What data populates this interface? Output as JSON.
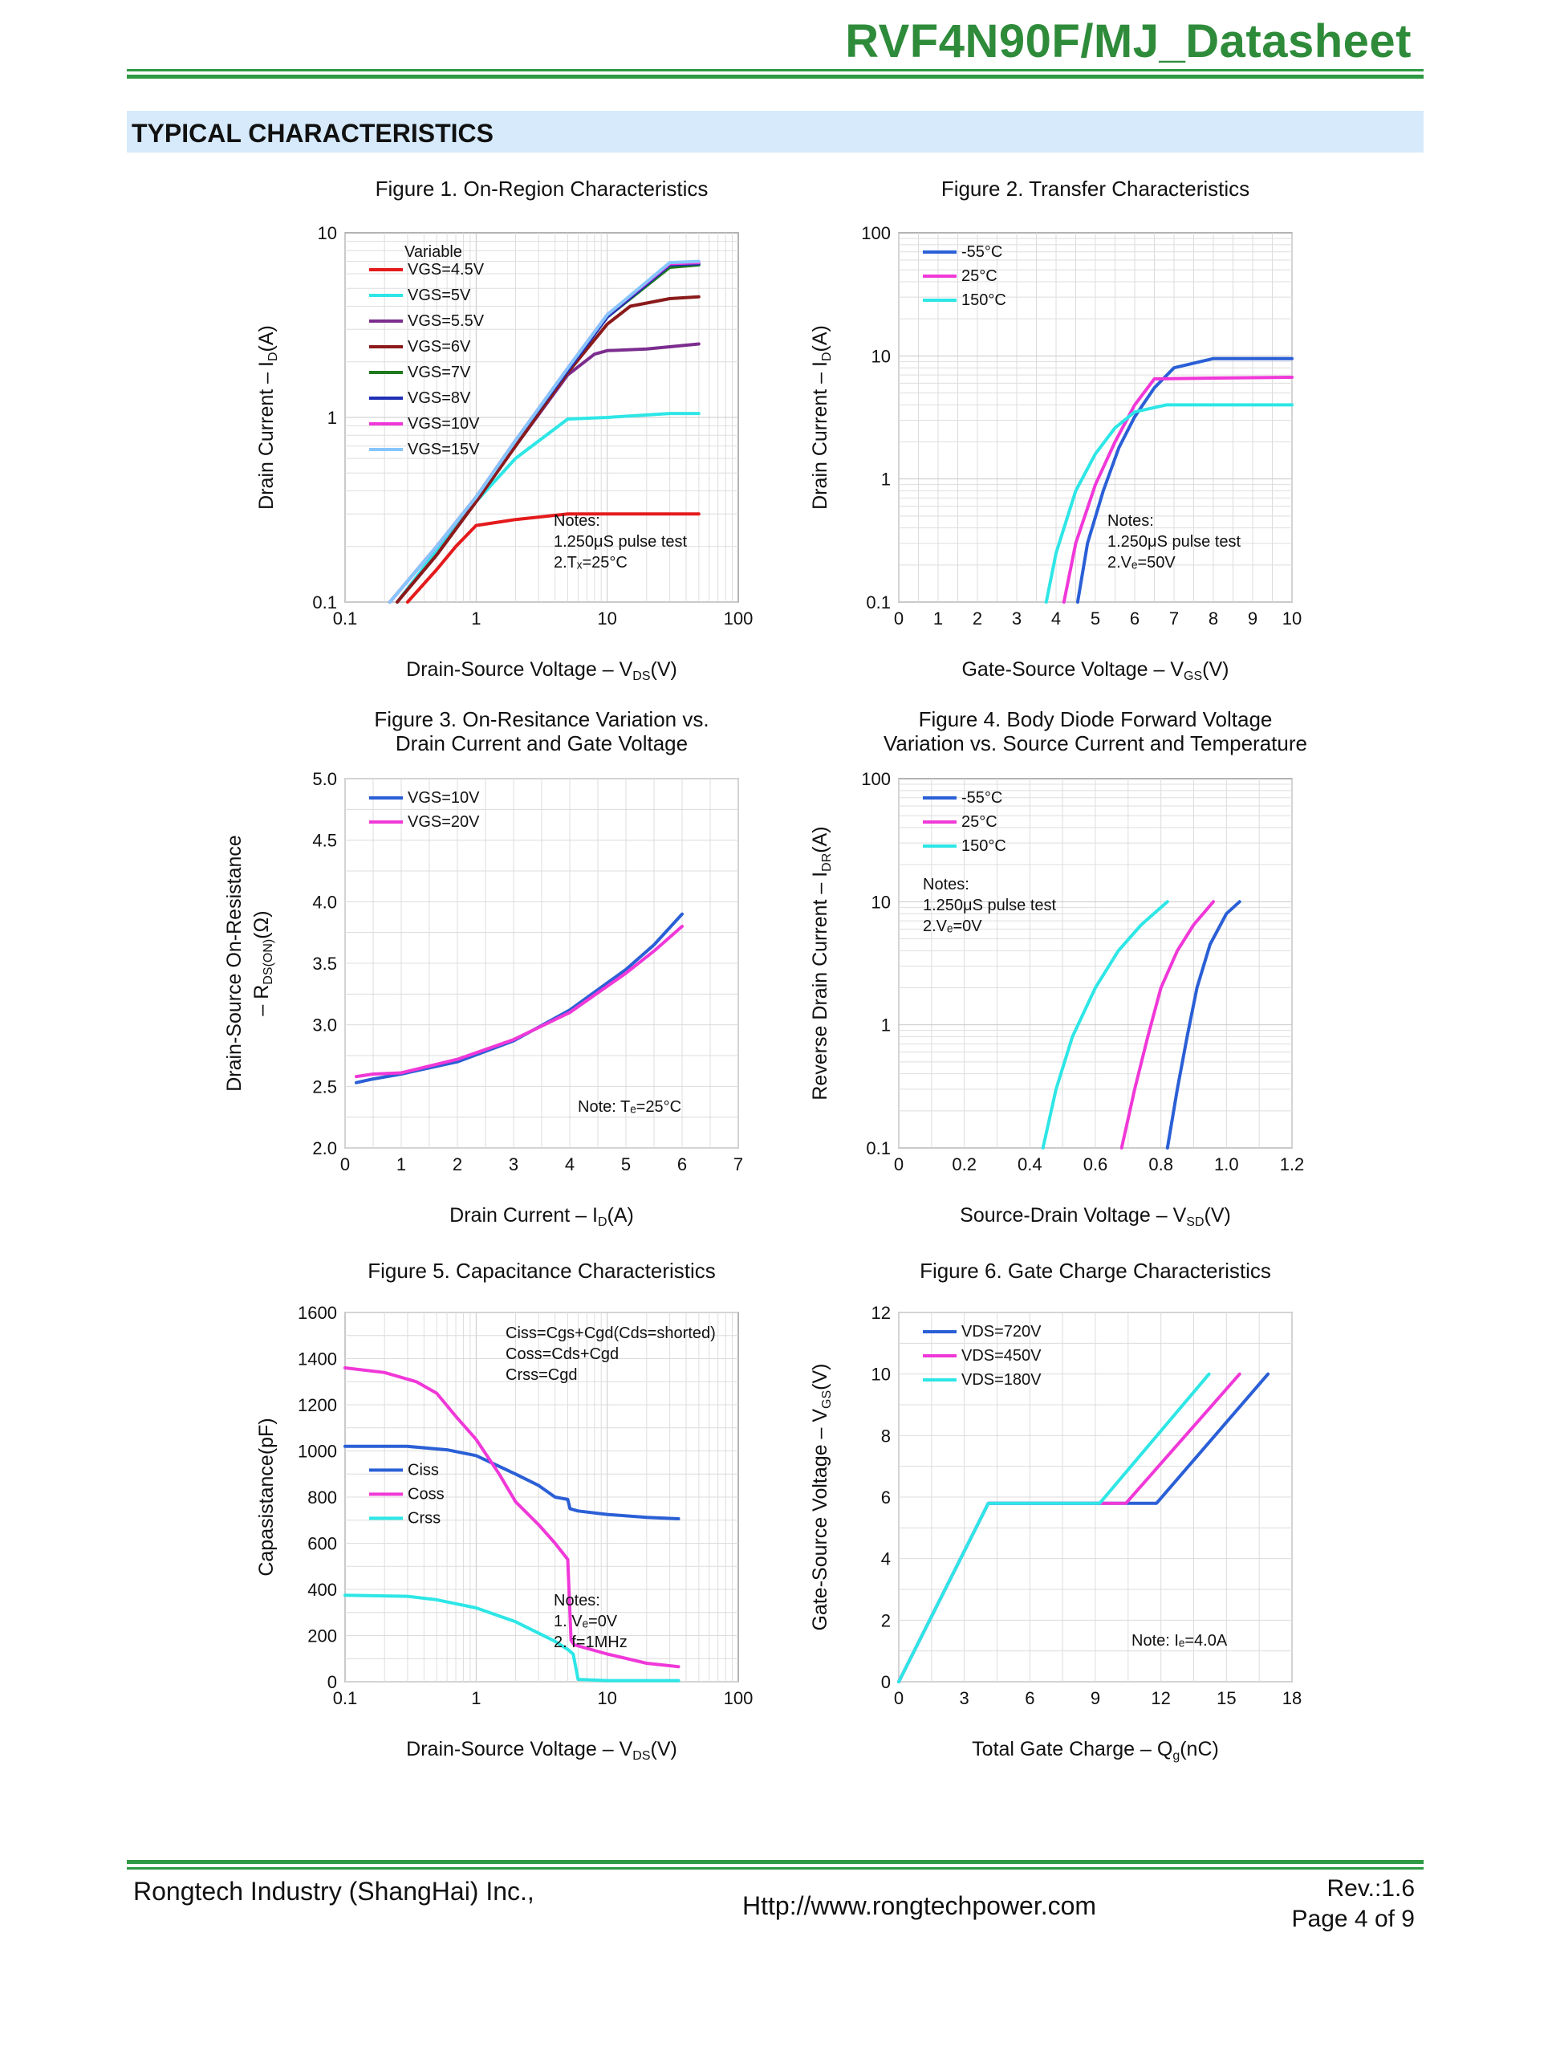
{
  "header": {
    "title": "RVF4N90F/MJ_Datasheet"
  },
  "section": {
    "title": "TYPICAL CHARACTERISTICS"
  },
  "footer": {
    "company": "Rongtech Industry (ShangHai) Inc.,",
    "url": "Http://www.rongtechpower.com",
    "rev": "Rev.:1.6",
    "page": "Page  4  of  9"
  },
  "colors": {
    "accent": "#2e8b3a",
    "section_bg": "#d6eafc"
  },
  "chart_data": [
    {
      "id": "fig1",
      "type": "line",
      "title": [
        "Figure 1. On-Region Characteristics"
      ],
      "xlabel": "Drain-Source Voltage  –  V",
      "xlabel_sub": "DS",
      "xlabel_end": "(V)",
      "ylabel": "Drain Current  –  I",
      "ylabel_sub": "D",
      "ylabel_end": "(A)",
      "xscale": "log",
      "yscale": "log",
      "xlim": [
        0.1,
        100
      ],
      "ylim": [
        0.1,
        10
      ],
      "xticks": [
        0.1,
        1,
        10,
        100
      ],
      "xticklabels": [
        "0.1",
        "1",
        "10",
        "100"
      ],
      "yticks": [
        0.1,
        1,
        10
      ],
      "yticklabels": [
        "0.1",
        "1",
        "10"
      ],
      "legend_title": "Variable",
      "legend_position": "top-left",
      "notes": [
        "Notes:",
        "1.250μS pulse test",
        "2.Tₓ=25°C"
      ],
      "notes_position": "bottom-right",
      "series": [
        {
          "name": "VGS=4.5V",
          "color": "#e41a1c",
          "x": [
            0.3,
            0.5,
            0.7,
            1.0,
            2,
            5,
            10,
            30,
            50
          ],
          "y": [
            0.1,
            0.15,
            0.2,
            0.26,
            0.28,
            0.3,
            0.3,
            0.3,
            0.3
          ]
        },
        {
          "name": "VGS=5V",
          "color": "#2ee6e6",
          "x": [
            0.25,
            0.5,
            1,
            2,
            5,
            10,
            30,
            50
          ],
          "y": [
            0.1,
            0.19,
            0.35,
            0.6,
            0.98,
            1.0,
            1.05,
            1.05
          ]
        },
        {
          "name": "VGS=5.5V",
          "color": "#7b2d8e",
          "x": [
            0.25,
            0.5,
            1,
            2,
            5,
            8,
            10,
            20,
            50
          ],
          "y": [
            0.1,
            0.18,
            0.35,
            0.7,
            1.7,
            2.2,
            2.3,
            2.35,
            2.5
          ]
        },
        {
          "name": "VGS=6V",
          "color": "#8b1a1a",
          "x": [
            0.25,
            0.5,
            1,
            2,
            5,
            10,
            15,
            30,
            50
          ],
          "y": [
            0.1,
            0.18,
            0.35,
            0.7,
            1.75,
            3.2,
            4.0,
            4.4,
            4.5
          ]
        },
        {
          "name": "VGS=7V",
          "color": "#1e7a1e",
          "x": [
            0.22,
            0.5,
            1,
            2,
            5,
            10,
            30,
            50
          ],
          "y": [
            0.1,
            0.2,
            0.37,
            0.75,
            1.8,
            3.5,
            6.5,
            6.7
          ]
        },
        {
          "name": "VGS=8V",
          "color": "#1f2fb5",
          "x": [
            0.22,
            0.5,
            1,
            2,
            5,
            10,
            30,
            50
          ],
          "y": [
            0.1,
            0.2,
            0.37,
            0.75,
            1.8,
            3.5,
            6.7,
            6.8
          ]
        },
        {
          "name": "VGS=10V",
          "color": "#f038d8",
          "x": [
            0.22,
            0.5,
            1,
            2,
            5,
            10,
            30,
            50
          ],
          "y": [
            0.1,
            0.2,
            0.37,
            0.75,
            1.85,
            3.6,
            6.8,
            6.9
          ]
        },
        {
          "name": "VGS=15V",
          "color": "#86c6ff",
          "x": [
            0.22,
            0.5,
            1,
            2,
            5,
            10,
            30,
            50
          ],
          "y": [
            0.1,
            0.2,
            0.37,
            0.75,
            1.85,
            3.6,
            6.9,
            7.0
          ]
        }
      ]
    },
    {
      "id": "fig2",
      "type": "line",
      "title": [
        "Figure 2. Transfer Characteristics"
      ],
      "xlabel": "Gate-Source Voltage  –  V",
      "xlabel_sub": "GS",
      "xlabel_end": "(V)",
      "ylabel": "Drain Current  –  I",
      "ylabel_sub": "D",
      "ylabel_end": "(A)",
      "xscale": "linear",
      "yscale": "log",
      "xlim": [
        0,
        10
      ],
      "ylim": [
        0.1,
        100
      ],
      "xticks": [
        0,
        1,
        2,
        3,
        4,
        5,
        6,
        7,
        8,
        9,
        10
      ],
      "xticklabels": [
        "0",
        "1",
        "2",
        "3",
        "4",
        "5",
        "6",
        "7",
        "8",
        "9",
        "10"
      ],
      "yticks": [
        0.1,
        1,
        10,
        100
      ],
      "yticklabels": [
        "0.1",
        "1",
        "10",
        "100"
      ],
      "legend_position": "top-left",
      "notes": [
        "Notes:",
        "1.250μS pulse test",
        "2.Vₑ=50V"
      ],
      "notes_position": "bottom-right",
      "series": [
        {
          "name": "-55°C",
          "color": "#2a5fd6",
          "x": [
            4.55,
            4.8,
            5.2,
            5.6,
            6.0,
            6.5,
            7.0,
            8.0,
            10.0
          ],
          "y": [
            0.1,
            0.3,
            0.8,
            1.8,
            3.2,
            5.5,
            8.0,
            9.5,
            9.5
          ]
        },
        {
          "name": "25°C",
          "color": "#f038d8",
          "x": [
            4.2,
            4.5,
            5.0,
            5.5,
            6.0,
            6.5,
            8.0,
            10.0
          ],
          "y": [
            0.1,
            0.3,
            0.9,
            2.0,
            4.0,
            6.5,
            6.6,
            6.7
          ]
        },
        {
          "name": "150°C",
          "color": "#2ee6e6",
          "x": [
            3.75,
            4.0,
            4.5,
            5.0,
            5.5,
            6.0,
            6.8,
            10.0
          ],
          "y": [
            0.1,
            0.25,
            0.8,
            1.6,
            2.6,
            3.5,
            4.0,
            4.0
          ]
        }
      ]
    },
    {
      "id": "fig3",
      "type": "line",
      "title": [
        "Figure 3. On-Resitance Variation vs.",
        "Drain Current and Gate Voltage"
      ],
      "xlabel": "Drain Current  –  I",
      "xlabel_sub": "D",
      "xlabel_end": "(A)",
      "ylabel": "Drain-Source On-Resistance",
      "ylabel2": "–  R",
      "ylabel2_sub": "DS(ON)",
      "ylabel2_end": "(Ω)",
      "xscale": "linear",
      "yscale": "linear",
      "xlim": [
        0,
        7
      ],
      "ylim": [
        2.0,
        5.0
      ],
      "xticks": [
        0,
        1,
        2,
        3,
        4,
        5,
        6,
        7
      ],
      "xticklabels": [
        "0",
        "1",
        "2",
        "3",
        "4",
        "5",
        "6",
        "7"
      ],
      "yticks": [
        2.0,
        2.5,
        3.0,
        3.5,
        4.0,
        4.5,
        5.0
      ],
      "yticklabels": [
        "2.0",
        "2.5",
        "3.0",
        "3.5",
        "4.0",
        "4.5",
        "5.0"
      ],
      "legend_position": "top-left",
      "notes": [
        "Note: Tₑ=25°C"
      ],
      "notes_position": "bottom-right",
      "series": [
        {
          "name": "VGS=10V",
          "color": "#2a5fd6",
          "x": [
            0.2,
            0.5,
            1,
            2,
            3,
            4,
            5,
            5.5,
            6.0
          ],
          "y": [
            2.53,
            2.56,
            2.6,
            2.7,
            2.87,
            3.12,
            3.45,
            3.65,
            3.9
          ]
        },
        {
          "name": "VGS=20V",
          "color": "#f038d8",
          "x": [
            0.2,
            0.5,
            1,
            2,
            3,
            4,
            5,
            5.5,
            6.0
          ],
          "y": [
            2.58,
            2.6,
            2.61,
            2.72,
            2.88,
            3.1,
            3.42,
            3.6,
            3.8
          ]
        }
      ]
    },
    {
      "id": "fig4",
      "type": "line",
      "title": [
        "Figure 4. Body Diode Forward Voltage",
        "Variation vs. Source Current and Temperature"
      ],
      "xlabel": "Source-Drain Voltage  –  V",
      "xlabel_sub": "SD",
      "xlabel_end": "(V)",
      "ylabel": "Reverse Drain Current  –  I",
      "ylabel_sub": "DR",
      "ylabel_end": "(A)",
      "xscale": "linear",
      "yscale": "log",
      "xlim": [
        0,
        1.2
      ],
      "ylim": [
        0.1,
        100
      ],
      "xticks": [
        0,
        0.2,
        0.4,
        0.6,
        0.8,
        1.0,
        1.2
      ],
      "xticklabels": [
        "0",
        "0.2",
        "0.4",
        "0.6",
        "0.8",
        "1.0",
        "1.2"
      ],
      "yticks": [
        0.1,
        1,
        10,
        100
      ],
      "yticklabels": [
        "0.1",
        "1",
        "10",
        "100"
      ],
      "legend_position": "top-left",
      "notes": [
        "Notes:",
        "1.250μS pulse test",
        "2.Vₑ=0V"
      ],
      "notes_position": "middle-left",
      "series": [
        {
          "name": "-55°C",
          "color": "#2a5fd6",
          "x": [
            0.82,
            0.85,
            0.88,
            0.91,
            0.95,
            1.0,
            1.04
          ],
          "y": [
            0.1,
            0.3,
            0.8,
            2.0,
            4.5,
            8.0,
            10
          ]
        },
        {
          "name": "25°C",
          "color": "#f038d8",
          "x": [
            0.68,
            0.72,
            0.76,
            0.8,
            0.85,
            0.9,
            0.96
          ],
          "y": [
            0.1,
            0.3,
            0.8,
            2.0,
            4.0,
            6.5,
            10
          ]
        },
        {
          "name": "150°C",
          "color": "#2ee6e6",
          "x": [
            0.44,
            0.48,
            0.53,
            0.6,
            0.67,
            0.74,
            0.82
          ],
          "y": [
            0.1,
            0.3,
            0.8,
            2.0,
            4.0,
            6.5,
            10
          ]
        }
      ]
    },
    {
      "id": "fig5",
      "type": "line",
      "title": [
        "Figure 5. Capacitance Characteristics"
      ],
      "xlabel": "Drain-Source Voltage  –  V",
      "xlabel_sub": "DS",
      "xlabel_end": "(V)",
      "ylabel": "Capasistance(pF)",
      "xscale": "log",
      "yscale": "linear",
      "xlim": [
        0.1,
        100
      ],
      "ylim": [
        0,
        1600
      ],
      "xticks": [
        0.1,
        1,
        10,
        100
      ],
      "xticklabels": [
        "0.1",
        "1",
        "10",
        "100"
      ],
      "yticks": [
        0,
        200,
        400,
        600,
        800,
        1000,
        1200,
        1400,
        1600
      ],
      "yticklabels": [
        "0",
        "200",
        "400",
        "600",
        "800",
        "1000",
        "1200",
        "1400",
        "1600"
      ],
      "legend_position": "middle-left",
      "formula_notes": [
        "Ciss=Cgs+Cgd(Cds=shorted)",
        "Coss=Cds+Cgd",
        "Crss=Cgd"
      ],
      "notes": [
        "Notes:",
        "1. Vₑ=0V",
        "2. f=1MHz"
      ],
      "notes_position": "bottom-right",
      "series": [
        {
          "name": "Ciss",
          "color": "#2a5fd6",
          "x": [
            0.1,
            0.3,
            0.6,
            1,
            2,
            3,
            4,
            5,
            5.2,
            6,
            10,
            20,
            35
          ],
          "y": [
            1020,
            1020,
            1005,
            980,
            900,
            850,
            800,
            790,
            750,
            740,
            725,
            712,
            706
          ]
        },
        {
          "name": "Coss",
          "color": "#f038d8",
          "x": [
            0.1,
            0.2,
            0.35,
            0.5,
            0.7,
            1,
            1.5,
            2,
            3,
            4,
            5,
            5.3,
            5.6,
            10,
            20,
            35
          ],
          "y": [
            1360,
            1340,
            1300,
            1250,
            1150,
            1050,
            900,
            780,
            680,
            600,
            530,
            180,
            160,
            120,
            80,
            65
          ]
        },
        {
          "name": "Crss",
          "color": "#2ee6e6",
          "x": [
            0.1,
            0.3,
            0.5,
            1,
            2,
            3,
            4,
            5,
            5.5,
            6,
            10,
            35
          ],
          "y": [
            375,
            370,
            355,
            320,
            260,
            210,
            175,
            140,
            120,
            10,
            5,
            5
          ]
        }
      ]
    },
    {
      "id": "fig6",
      "type": "line",
      "title": [
        "Figure 6. Gate Charge Characteristics"
      ],
      "xlabel": "Total Gate Charge  –  Q",
      "xlabel_sub": "g",
      "xlabel_end": "(nC)",
      "ylabel": "Gate-Source Voltage  –  V",
      "ylabel_sub": "GS",
      "ylabel_end": "(V)",
      "xscale": "linear",
      "yscale": "linear",
      "xlim": [
        0,
        18
      ],
      "ylim": [
        0,
        12
      ],
      "xticks": [
        0,
        3,
        6,
        9,
        12,
        15,
        18
      ],
      "xticklabels": [
        "0",
        "3",
        "6",
        "9",
        "12",
        "15",
        "18"
      ],
      "yticks": [
        0,
        2,
        4,
        6,
        8,
        10,
        12
      ],
      "yticklabels": [
        "0",
        "2",
        "4",
        "6",
        "8",
        "10",
        "12"
      ],
      "legend_position": "top-left",
      "notes": [
        "Note: Iₑ=4.0A"
      ],
      "notes_position": "bottom-right",
      "series": [
        {
          "name": "VDS=720V",
          "color": "#2a5fd6",
          "x": [
            0,
            4.1,
            11.8,
            16.9
          ],
          "y": [
            0,
            5.8,
            5.8,
            10.0
          ]
        },
        {
          "name": "VDS=450V",
          "color": "#f038d8",
          "x": [
            0,
            4.1,
            10.4,
            15.6
          ],
          "y": [
            0,
            5.8,
            5.8,
            10.0
          ]
        },
        {
          "name": "VDS=180V",
          "color": "#2ee6e6",
          "x": [
            0,
            4.1,
            9.2,
            14.2
          ],
          "y": [
            0,
            5.8,
            5.8,
            10.0
          ]
        }
      ]
    }
  ]
}
